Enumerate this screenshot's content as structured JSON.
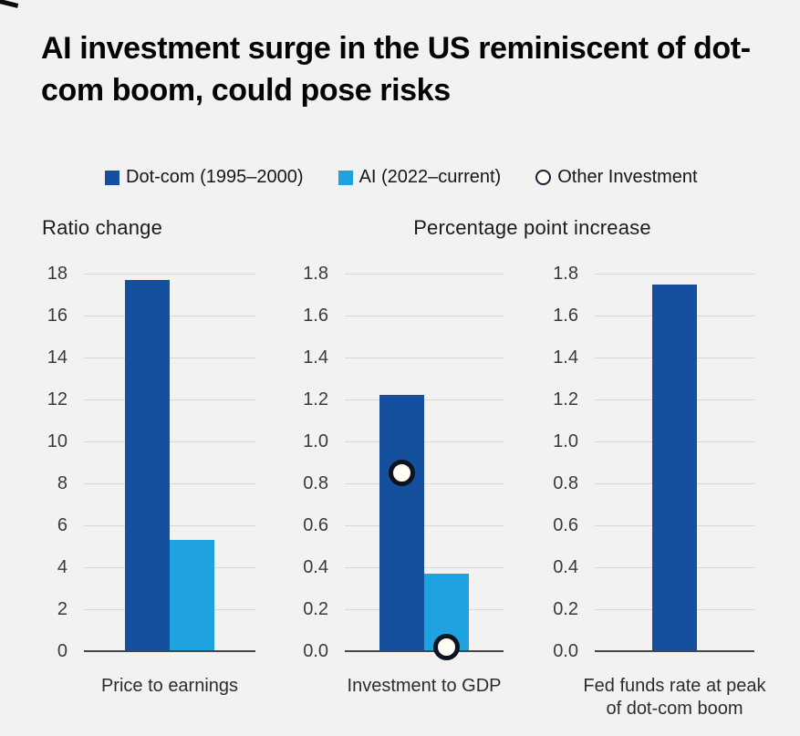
{
  "title": "AI investment surge in the US reminiscent of dot-com boom, could pose risks",
  "section_headers": {
    "left": "Ratio change",
    "right": "Percentage point increase"
  },
  "colors": {
    "background": "#f2f2f2",
    "dotcom_blue": "#15509e",
    "ai_blue": "#1fa3e0",
    "marker_fill": "#fffdf4",
    "marker_border": "#0d1420",
    "gridline": "#d8d8d8",
    "axis": "#454545"
  },
  "legend": {
    "items": [
      {
        "label": "Dot-com (1995–2000)",
        "swatch": "square",
        "color": "#15509e"
      },
      {
        "label": "AI (2022–current)",
        "swatch": "square",
        "color": "#1fa3e0"
      },
      {
        "label": "Other Investment",
        "swatch": "circle",
        "fill": "#fffdf4",
        "border": "#16223a"
      }
    ]
  },
  "chart_data": [
    {
      "type": "bar",
      "panel_header": "Ratio change",
      "category": "Price to earnings",
      "ylim": [
        0,
        18
      ],
      "grid": true,
      "yticks": [
        {
          "value": 0,
          "label": "0"
        },
        {
          "value": 2,
          "label": "2"
        },
        {
          "value": 4,
          "label": "4"
        },
        {
          "value": 6,
          "label": "6"
        },
        {
          "value": 8,
          "label": "8"
        },
        {
          "value": 10,
          "label": "10"
        },
        {
          "value": 12,
          "label": "12"
        },
        {
          "value": 14,
          "label": "14"
        },
        {
          "value": 16,
          "label": "16"
        },
        {
          "value": 18,
          "label": "18"
        }
      ],
      "series": [
        {
          "name": "Dot-com (1995–2000)",
          "value": 17.7,
          "color": "#15509e"
        },
        {
          "name": "AI (2022–current)",
          "value": 5.3,
          "color": "#1fa3e0"
        }
      ],
      "markers": []
    },
    {
      "type": "bar",
      "panel_header": "Percentage point increase",
      "category": "Investment to GDP",
      "ylim": [
        0,
        1.8
      ],
      "grid": true,
      "yticks": [
        {
          "value": 0.0,
          "label": "0.0"
        },
        {
          "value": 0.2,
          "label": "0.2"
        },
        {
          "value": 0.4,
          "label": "0.4"
        },
        {
          "value": 0.6,
          "label": "0.6"
        },
        {
          "value": 0.8,
          "label": "0.8"
        },
        {
          "value": 1.0,
          "label": "1.0"
        },
        {
          "value": 1.2,
          "label": "1.2"
        },
        {
          "value": 1.4,
          "label": "1.4"
        },
        {
          "value": 1.6,
          "label": "1.6"
        },
        {
          "value": 1.8,
          "label": "1.8"
        }
      ],
      "series": [
        {
          "name": "Dot-com (1995–2000)",
          "value": 1.22,
          "color": "#15509e"
        },
        {
          "name": "AI (2022–current)",
          "value": 0.37,
          "color": "#1fa3e0"
        }
      ],
      "markers": [
        {
          "name": "Other Investment",
          "bar_index": 0,
          "value": 0.85
        },
        {
          "name": "Other Investment",
          "bar_index": 1,
          "value": 0.02
        }
      ]
    },
    {
      "type": "bar",
      "panel_header": "Percentage point increase",
      "category": "Fed funds rate at peak of dot-com boom",
      "ylim": [
        0,
        1.8
      ],
      "grid": true,
      "yticks": [
        {
          "value": 0.0,
          "label": "0.0"
        },
        {
          "value": 0.2,
          "label": "0.2"
        },
        {
          "value": 0.4,
          "label": "0.4"
        },
        {
          "value": 0.6,
          "label": "0.6"
        },
        {
          "value": 0.8,
          "label": "0.8"
        },
        {
          "value": 1.0,
          "label": "1.0"
        },
        {
          "value": 1.2,
          "label": "1.2"
        },
        {
          "value": 1.4,
          "label": "1.4"
        },
        {
          "value": 1.6,
          "label": "1.6"
        },
        {
          "value": 1.8,
          "label": "1.8"
        }
      ],
      "series": [
        {
          "name": "Dot-com (1995–2000)",
          "value": 1.75,
          "color": "#15509e"
        }
      ],
      "markers": []
    }
  ]
}
